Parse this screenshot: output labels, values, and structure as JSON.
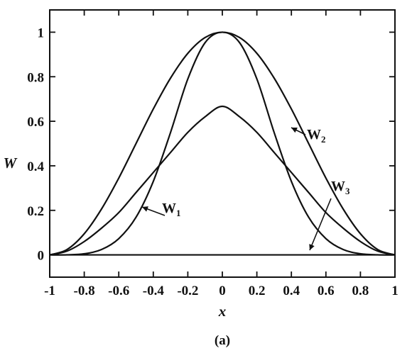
{
  "chart_data": {
    "type": "line",
    "xlabel": "x",
    "ylabel": "W",
    "caption": "(a)",
    "xlim": [
      -1,
      1
    ],
    "ylim": [
      -0.1,
      1.1
    ],
    "grid": false,
    "x_ticks": [
      "-1",
      "-0.8",
      "-0.6",
      "-0.4",
      "-0.2",
      "0",
      "0.2",
      "0.4",
      "0.6",
      "0.8",
      "1"
    ],
    "y_ticks": [
      "0",
      "0.2",
      "0.4",
      "0.6",
      "0.8",
      "1"
    ],
    "x": [
      -1.0,
      -0.9,
      -0.8,
      -0.7,
      -0.6,
      -0.5,
      -0.4,
      -0.3,
      -0.2,
      -0.1,
      0.0,
      0.1,
      0.2,
      0.3,
      0.4,
      0.5,
      0.6,
      0.7,
      0.8,
      0.9,
      1.0
    ],
    "series": [
      {
        "name": "W1",
        "label_main": "W",
        "label_sub": "1",
        "values": [
          0.0,
          0.017,
          0.06,
          0.12,
          0.19,
          0.28,
          0.37,
          0.46,
          0.55,
          0.62,
          0.667,
          0.62,
          0.55,
          0.46,
          0.37,
          0.28,
          0.19,
          0.12,
          0.06,
          0.017,
          0.0
        ]
      },
      {
        "name": "W2",
        "label_main": "W",
        "label_sub": "2",
        "values": [
          0.0,
          0.024,
          0.095,
          0.206,
          0.345,
          0.5,
          0.655,
          0.794,
          0.905,
          0.976,
          1.0,
          0.976,
          0.905,
          0.794,
          0.655,
          0.5,
          0.345,
          0.206,
          0.095,
          0.024,
          0.0
        ]
      },
      {
        "name": "W3",
        "label_main": "W",
        "label_sub": "3",
        "values": [
          0.0,
          0.0004,
          0.005,
          0.024,
          0.073,
          0.169,
          0.33,
          0.55,
          0.79,
          0.953,
          1.0,
          0.953,
          0.79,
          0.55,
          0.33,
          0.169,
          0.073,
          0.024,
          0.005,
          0.0004,
          0.0
        ]
      }
    ]
  }
}
